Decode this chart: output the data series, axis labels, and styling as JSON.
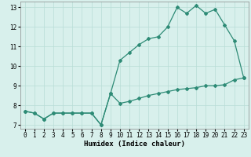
{
  "xlabel": "Humidex (Indice chaleur)",
  "xlim": [
    -0.5,
    23.5
  ],
  "ylim": [
    6.8,
    13.3
  ],
  "xticks": [
    0,
    1,
    2,
    3,
    4,
    5,
    6,
    7,
    8,
    9,
    10,
    11,
    12,
    13,
    14,
    15,
    16,
    17,
    18,
    19,
    20,
    21,
    22,
    23
  ],
  "yticks": [
    7,
    8,
    9,
    10,
    11,
    12,
    13
  ],
  "line1_x": [
    0,
    1,
    2,
    3,
    4,
    5,
    6,
    7,
    8,
    9,
    10,
    11,
    12,
    13,
    14,
    15,
    16,
    17,
    18,
    19,
    20,
    21,
    22,
    23
  ],
  "line1_y": [
    7.7,
    7.6,
    7.3,
    7.6,
    7.6,
    7.6,
    7.6,
    7.6,
    7.0,
    8.6,
    8.1,
    8.2,
    8.35,
    8.5,
    8.6,
    8.7,
    8.8,
    8.85,
    8.9,
    9.0,
    9.0,
    9.05,
    9.3,
    9.4
  ],
  "line2_x": [
    0,
    1,
    2,
    3,
    4,
    5,
    6,
    7,
    8,
    9,
    10,
    11,
    12,
    13,
    14,
    15,
    16,
    17,
    18,
    19,
    20,
    21,
    22,
    23
  ],
  "line2_y": [
    7.7,
    7.6,
    7.3,
    7.6,
    7.6,
    7.6,
    7.6,
    7.6,
    7.0,
    8.6,
    10.3,
    10.7,
    11.1,
    11.4,
    11.5,
    12.0,
    13.0,
    12.7,
    13.1,
    12.7,
    12.9,
    12.1,
    11.3,
    9.4
  ],
  "line_color": "#2e8b76",
  "bg_color": "#d8f0ec",
  "grid_color": "#b8ddd6",
  "title_fontsize": 6.5,
  "label_fontsize": 6.5,
  "tick_fontsize": 5.5
}
